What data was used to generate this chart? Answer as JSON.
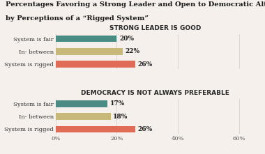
{
  "title_line1": "Percentages Favoring a Strong Leader and Open to Democratic Alternatives",
  "title_line2": "by Perceptions of a “Rigged System”",
  "chart1_title": "STRONG LEADER IS GOOD",
  "chart2_title": "DEMOCRACY IS NOT ALWAYS PREFERABLE",
  "categories": [
    "System is fair",
    "In- between",
    "System is rigged"
  ],
  "chart1_values": [
    20,
    22,
    26
  ],
  "chart2_values": [
    17,
    18,
    26
  ],
  "bar_colors": [
    "#4a8b84",
    "#c8b87a",
    "#e06b56"
  ],
  "xlabel_ticks": [
    0,
    20,
    40,
    60
  ],
  "xlabel_labels": [
    "0%",
    "20%",
    "40%",
    "60%"
  ],
  "xlim": [
    0,
    65
  ],
  "background_color": "#f5f0eb",
  "title_fontsize": 7.2,
  "subtitle_fontsize": 6.5,
  "label_fontsize": 6.0,
  "value_fontsize": 6.5,
  "bar_height": 0.52
}
